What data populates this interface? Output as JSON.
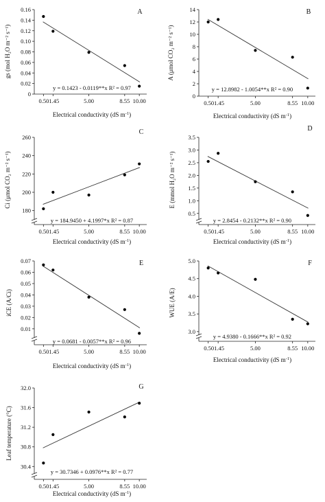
{
  "chart_data": [
    {
      "type": "scatter",
      "panel_letter": "A",
      "xlabel": "Electrical conductivity (dS m",
      "xlabel_sup": "-1",
      "xlabel_close": ")",
      "ylabel": "gs (mol H₂O m⁻² s⁻¹)",
      "x_ticks": [
        {
          "value": 0.5,
          "label": ""
        },
        {
          "value": 1.45,
          "label": "0.501.45"
        },
        {
          "value": 5.0,
          "label": "5.00"
        },
        {
          "value": 8.55,
          "label": "8.55"
        },
        {
          "value": 10.0,
          "label": "10.00"
        }
      ],
      "y_ticks": [
        "0",
        "0.02",
        "0.04",
        "0.06",
        "0.08",
        "0.10",
        "0.12",
        "0.14",
        "0.16"
      ],
      "ylim": [
        0,
        0.16
      ],
      "y_break": false,
      "points": [
        {
          "x": 0.5,
          "y": 0.147
        },
        {
          "x": 1.45,
          "y": 0.119
        },
        {
          "x": 5.0,
          "y": 0.079
        },
        {
          "x": 8.55,
          "y": 0.054
        },
        {
          "x": 10.0,
          "y": 0.015
        }
      ],
      "fit": {
        "intercept": 0.1423,
        "slope": -0.0119
      },
      "equation": "y = 0.1423 - 0.0119**x  R² = 0.97"
    },
    {
      "type": "scatter",
      "panel_letter": "B",
      "xlabel": "Electrical conductivity (dS m",
      "xlabel_sup": "-1",
      "xlabel_close": ")",
      "ylabel": "A (μmol CO₂ m⁻² s⁻¹)",
      "x_ticks": [
        {
          "value": 0.5,
          "label": ""
        },
        {
          "value": 1.45,
          "label": "0.501.45"
        },
        {
          "value": 5.0,
          "label": "5.00"
        },
        {
          "value": 8.55,
          "label": "8.55"
        },
        {
          "value": 10.0,
          "label": "10.00"
        }
      ],
      "y_ticks": [
        "0",
        "2",
        "4",
        "6",
        "8",
        "10",
        "12",
        "14"
      ],
      "ylim": [
        0,
        14
      ],
      "y_break": false,
      "points": [
        {
          "x": 0.5,
          "y": 12.0
        },
        {
          "x": 1.45,
          "y": 12.4
        },
        {
          "x": 5.0,
          "y": 7.4
        },
        {
          "x": 8.55,
          "y": 6.3
        },
        {
          "x": 10.0,
          "y": 1.3
        }
      ],
      "fit": {
        "intercept": 12.8982,
        "slope": -1.0054
      },
      "equation": "y = 12.8982 - 1.0054**x  R² = 0.90"
    },
    {
      "type": "scatter",
      "panel_letter": "C",
      "xlabel": "Electrical conductivity (dS m",
      "xlabel_sup": "-1",
      "xlabel_close": ")",
      "ylabel": "Ci (μmol CO₂ m⁻² s⁻¹)",
      "x_ticks": [
        {
          "value": 0.5,
          "label": ""
        },
        {
          "value": 1.45,
          "label": "0.501.45"
        },
        {
          "value": 5.0,
          "label": "5.00"
        },
        {
          "value": 8.55,
          "label": "8.55"
        },
        {
          "value": 10.0,
          "label": "10.00"
        }
      ],
      "y_ticks": [
        "180",
        "200",
        "220",
        "240",
        "260"
      ],
      "ylim": [
        170,
        260
      ],
      "y_break": true,
      "points": [
        {
          "x": 0.5,
          "y": 182
        },
        {
          "x": 1.45,
          "y": 200
        },
        {
          "x": 5.0,
          "y": 197
        },
        {
          "x": 8.55,
          "y": 219
        },
        {
          "x": 10.0,
          "y": 231
        }
      ],
      "fit": {
        "intercept": 184.945,
        "slope": 4.1997
      },
      "equation": "y = 184.9450 + 4.1997*x  R² = 0.87"
    },
    {
      "type": "scatter",
      "panel_letter": "D",
      "xlabel": "Electrical conductivity (dS m",
      "xlabel_sup": "-1",
      "xlabel_close": ")",
      "ylabel": "E (mmol H₂O m⁻² s⁻¹)",
      "x_ticks": [
        {
          "value": 0.5,
          "label": ""
        },
        {
          "value": 1.45,
          "label": "0.501.45"
        },
        {
          "value": 5.0,
          "label": "5.00"
        },
        {
          "value": 8.55,
          "label": "8.55"
        },
        {
          "value": 10.0,
          "label": "10.00"
        }
      ],
      "y_ticks": [
        "0.5",
        "1.0",
        "1.5",
        "2.0",
        "2.5",
        "3.0",
        "3.5"
      ],
      "ylim": [
        0.25,
        3.5
      ],
      "y_break": true,
      "points": [
        {
          "x": 0.5,
          "y": 2.55
        },
        {
          "x": 1.45,
          "y": 2.87
        },
        {
          "x": 5.0,
          "y": 1.75
        },
        {
          "x": 8.55,
          "y": 1.35
        },
        {
          "x": 10.0,
          "y": 0.42
        }
      ],
      "fit": {
        "intercept": 2.8454,
        "slope": -0.2132
      },
      "equation": "y = 2.8454 - 0.2132**x  R² = 0.90"
    },
    {
      "type": "scatter",
      "panel_letter": "E",
      "xlabel": "Electrical conductivity (dS m",
      "xlabel_sup": "-1",
      "xlabel_close": ")",
      "ylabel": "iCE (A/Ci)",
      "x_ticks": [
        {
          "value": 0.5,
          "label": ""
        },
        {
          "value": 1.45,
          "label": "0.501.45"
        },
        {
          "value": 5.0,
          "label": "5.00"
        },
        {
          "value": 8.55,
          "label": "8.55"
        },
        {
          "value": 10.0,
          "label": "10.00"
        }
      ],
      "y_ticks": [
        "0.01",
        "0.02",
        "0.03",
        "0.04",
        "0.05",
        "0.06",
        "0.07"
      ],
      "ylim": [
        0.002,
        0.07
      ],
      "y_break": true,
      "points": [
        {
          "x": 0.5,
          "y": 0.0665
        },
        {
          "x": 1.45,
          "y": 0.062
        },
        {
          "x": 5.0,
          "y": 0.038
        },
        {
          "x": 8.55,
          "y": 0.027
        },
        {
          "x": 10.0,
          "y": 0.006
        }
      ],
      "fit": {
        "intercept": 0.0681,
        "slope": -0.0057
      },
      "equation": "y = 0.0681 - 0.0057**x  R² = 0.96"
    },
    {
      "type": "scatter",
      "panel_letter": "F",
      "xlabel": "Electrical conductivity (dS m",
      "xlabel_sup": "-1",
      "xlabel_close": ")",
      "ylabel": "WUE (A/E)",
      "x_ticks": [
        {
          "value": 0.5,
          "label": ""
        },
        {
          "value": 1.45,
          "label": "0.501.45"
        },
        {
          "value": 5.0,
          "label": "5.00"
        },
        {
          "value": 8.55,
          "label": "8.55"
        },
        {
          "value": 10.0,
          "label": "10.00"
        }
      ],
      "y_ticks": [
        "3.0",
        "3.5",
        "4.0",
        "4.5",
        "5.0"
      ],
      "ylim": [
        2.9,
        5.0
      ],
      "y_break": true,
      "points": [
        {
          "x": 0.5,
          "y": 4.8
        },
        {
          "x": 1.45,
          "y": 4.66
        },
        {
          "x": 5.0,
          "y": 4.48
        },
        {
          "x": 8.55,
          "y": 3.35
        },
        {
          "x": 10.0,
          "y": 3.22
        }
      ],
      "fit": {
        "intercept": 4.938,
        "slope": -0.1666
      },
      "equation": "y = 4.9380 - 0.1666**x  R² = 0.92"
    },
    {
      "type": "scatter",
      "panel_letter": "G",
      "xlabel": "Electrical conductivity (dS m",
      "xlabel_sup": "-1",
      "xlabel_close": ")",
      "ylabel": "Leaf temperature (°C)",
      "x_ticks": [
        {
          "value": 0.5,
          "label": ""
        },
        {
          "value": 1.45,
          "label": "0.501.45"
        },
        {
          "value": 5.0,
          "label": "5.00"
        },
        {
          "value": 8.55,
          "label": "8.55"
        },
        {
          "value": 10.0,
          "label": "10.00"
        }
      ],
      "y_ticks": [
        "30.4",
        "30.8",
        "31.2",
        "31.6",
        "32.0"
      ],
      "ylim": [
        30.25,
        32.0
      ],
      "y_break": true,
      "points": [
        {
          "x": 0.5,
          "y": 30.47
        },
        {
          "x": 1.45,
          "y": 31.05
        },
        {
          "x": 5.0,
          "y": 31.51
        },
        {
          "x": 8.55,
          "y": 31.41
        },
        {
          "x": 10.0,
          "y": 31.69
        }
      ],
      "fit": {
        "intercept": 30.7346,
        "slope": 0.0976
      },
      "equation": "y = 30.7346 + 0.0976**x  R² = 0.77"
    }
  ]
}
